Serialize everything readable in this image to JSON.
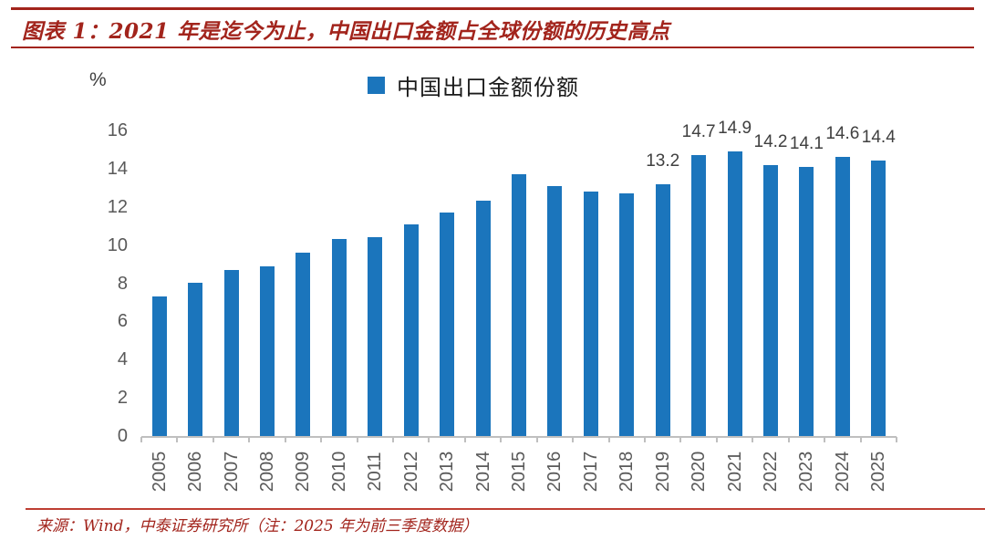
{
  "header": {
    "title": "图表 1：2021 年是迄今为止，中国出口金额占全球份额的历史高点",
    "accent_color": "#A2241C"
  },
  "legend": {
    "label": "中国出口金额份额",
    "swatch_color": "#1B75BC"
  },
  "footer": {
    "source": "来源：Wind，中泰证券研究所（注：2025 年为前三季度数据）",
    "divider_color": "#BE3E32"
  },
  "chart_data": {
    "type": "bar",
    "title": "中国出口金额份额",
    "categories": [
      "2005",
      "2006",
      "2007",
      "2008",
      "2009",
      "2010",
      "2011",
      "2012",
      "2013",
      "2014",
      "2015",
      "2016",
      "2017",
      "2018",
      "2019",
      "2020",
      "2021",
      "2022",
      "2023",
      "2024",
      "2025"
    ],
    "values": [
      7.3,
      8.0,
      8.7,
      8.9,
      9.6,
      10.3,
      10.4,
      11.1,
      11.7,
      12.3,
      13.7,
      13.1,
      12.8,
      12.7,
      13.2,
      14.7,
      14.9,
      14.2,
      14.1,
      14.6,
      14.4
    ],
    "data_labels": [
      null,
      null,
      null,
      null,
      null,
      null,
      null,
      null,
      null,
      null,
      null,
      null,
      null,
      null,
      "13.2",
      "14.7",
      "14.9",
      "14.2",
      "14.1",
      "14.6",
      "14.4"
    ],
    "xlabel": "",
    "ylabel": "%",
    "ylim": [
      0,
      16
    ],
    "ytick_step": 2,
    "grid": false,
    "legend_position": "top",
    "bar_color": "#1B75BC",
    "axis_color": "#BFBFBF",
    "tick_label_color": "#595959",
    "value_label_color": "#404040"
  }
}
